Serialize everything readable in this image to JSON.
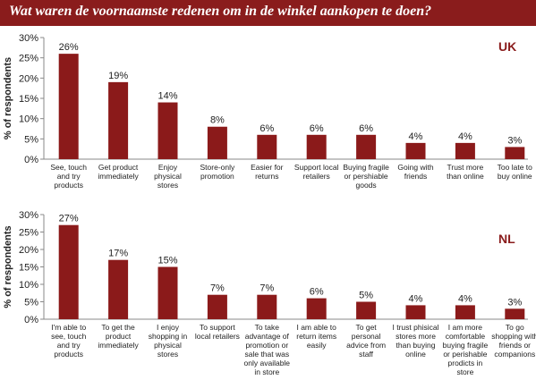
{
  "header": {
    "title": "Wat waren de voornaamste redenen om in de winkel aankopen te doen?"
  },
  "colors": {
    "banner": "#8a1c1c",
    "bar": "#8b1a1a",
    "country_label": "#8a1c1c",
    "axis": "#888888"
  },
  "chart_data": [
    {
      "type": "bar",
      "country_label": "UK",
      "ylabel": "% of respondents",
      "ylim": [
        0,
        30
      ],
      "yticks": [
        "0%",
        "5%",
        "10%",
        "15%",
        "20%",
        "25%",
        "30%"
      ],
      "categories": [
        "See, touch and try products",
        "Get product immediately",
        "Enjoy physical stores",
        "Store-only promotion",
        "Easier for returns",
        "Support local retailers",
        "Buying fragile or pershiable goods",
        "Going with friends",
        "Trust more than online",
        "Too late to buy online"
      ],
      "category_lines": [
        [
          "See, touch",
          "and try",
          "products"
        ],
        [
          "Get product",
          "immediately"
        ],
        [
          "Enjoy",
          "physical",
          "stores"
        ],
        [
          "Store-only",
          "promotion"
        ],
        [
          "Easier for",
          "returns"
        ],
        [
          "Support local",
          "retailers"
        ],
        [
          "Buying fragile",
          "or pershiable",
          "goods"
        ],
        [
          "Going with",
          "friends"
        ],
        [
          "Trust more",
          "than online"
        ],
        [
          "Too late to",
          "buy online"
        ]
      ],
      "values": [
        26,
        19,
        14,
        8,
        6,
        6,
        6,
        4,
        4,
        3
      ],
      "value_labels": [
        "26%",
        "19%",
        "14%",
        "8%",
        "6%",
        "6%",
        "6%",
        "4%",
        "4%",
        "3%"
      ]
    },
    {
      "type": "bar",
      "country_label": "NL",
      "ylabel": "% of respondents",
      "ylim": [
        0,
        30
      ],
      "yticks": [
        "0%",
        "5%",
        "10%",
        "15%",
        "20%",
        "25%",
        "30%"
      ],
      "categories": [
        "I'm able to see, touch and try products",
        "To get the product immediately",
        "I enjoy shopping in physical stores",
        "To support local retailers",
        "To take advantage of promotion or sale that was only available in store",
        "I am able to return items easily",
        "To get personal advice from staff",
        "I trust phisical stores more than buying online",
        "I am more comfortable buying fragile or perishable prodicts in store",
        "To go shopping with friends or companions"
      ],
      "category_lines": [
        [
          "I'm able to",
          "see, touch",
          "and try",
          "products"
        ],
        [
          "To get the",
          "product",
          "immediately"
        ],
        [
          "I enjoy",
          "shopping in",
          "physical",
          "stores"
        ],
        [
          "To support",
          "local retailers"
        ],
        [
          "To take",
          "advantage of",
          "promotion or",
          "sale that was",
          "only available",
          "in store"
        ],
        [
          "I am able to",
          "return items",
          "easily"
        ],
        [
          "To get",
          "personal",
          "advice from",
          "staff"
        ],
        [
          "I trust phisical",
          "stores more",
          "than buying",
          "online"
        ],
        [
          "I am more",
          "comfortable",
          "buying fragile",
          "or perishable",
          "prodicts in",
          "store"
        ],
        [
          "To go",
          "shopping with",
          "friends or",
          "companions"
        ]
      ],
      "values": [
        27,
        17,
        15,
        7,
        7,
        6,
        5,
        4,
        4,
        3
      ],
      "value_labels": [
        "27%",
        "17%",
        "15%",
        "7%",
        "7%",
        "6%",
        "5%",
        "4%",
        "4%",
        "3%"
      ]
    }
  ]
}
